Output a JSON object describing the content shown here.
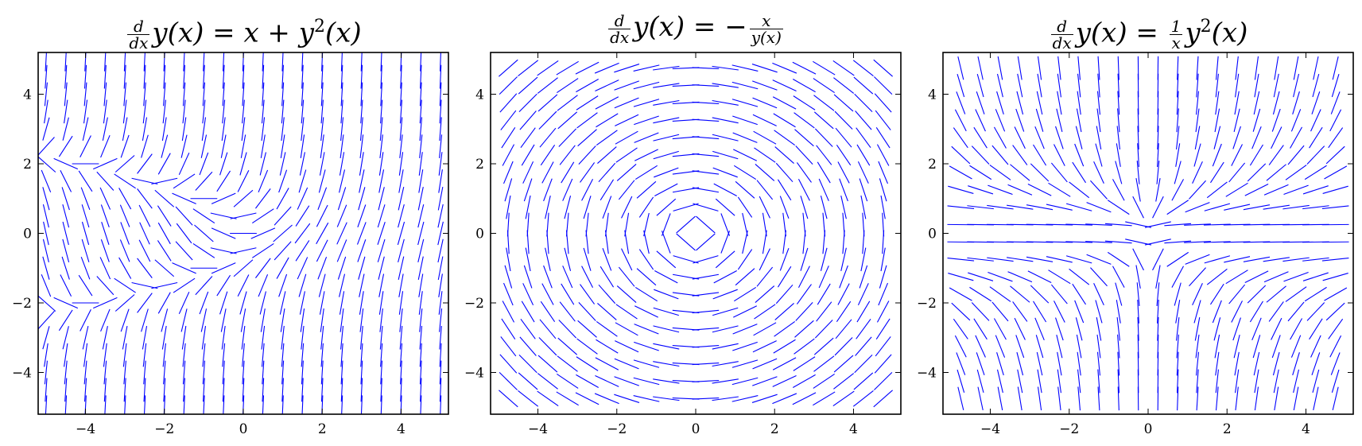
{
  "chart_data": [
    {
      "type": "slope_field",
      "equation": "y' = x + y^2",
      "title": {
        "num": "d",
        "den": "dx",
        "mid": "y(x) = x + y",
        "sup": "2",
        "tail": "(x)"
      },
      "xlim": [
        -5.2,
        5.2
      ],
      "ylim": [
        -5.2,
        5.2
      ],
      "xticks": [
        -4,
        -2,
        0,
        2,
        4
      ],
      "yticks": [
        -4,
        -2,
        0,
        2,
        4
      ],
      "xtick_labels": [
        "−4",
        "−2",
        "0",
        "2",
        "4"
      ],
      "ytick_labels": [
        "−4",
        "−2",
        "0",
        "2",
        "4"
      ],
      "grid_start": -5.0,
      "grid_step": 0.5,
      "grid_count": 21,
      "color": "#0000ff"
    },
    {
      "type": "slope_field",
      "equation": "y' = -x / y",
      "title": {
        "num": "d",
        "den": "dx",
        "mid": "y(x) = −",
        "fnum": "x",
        "fden": "y(x)"
      },
      "xlim": [
        -5.2,
        5.2
      ],
      "ylim": [
        -5.2,
        5.2
      ],
      "xticks": [
        -4,
        -2,
        0,
        2,
        4
      ],
      "yticks": [
        -4,
        -2,
        0,
        2,
        4
      ],
      "xtick_labels": [
        "−4",
        "−2",
        "0",
        "2",
        "4"
      ],
      "ytick_labels": [
        "−4",
        "−2",
        "0",
        "2",
        "4"
      ],
      "grid_start": -4.75,
      "grid_step": 0.5,
      "grid_count": 20,
      "color": "#0000ff"
    },
    {
      "type": "slope_field",
      "equation": "y' = y^2 / x",
      "title": {
        "num": "d",
        "den": "dx",
        "mid": "y(x) = ",
        "fnum": "1",
        "fden": "x",
        "tailmid": "y",
        "sup": "2",
        "tail": "(x)"
      },
      "xlim": [
        -5.2,
        5.2
      ],
      "ylim": [
        -5.2,
        5.2
      ],
      "xticks": [
        -4,
        -2,
        0,
        2,
        4
      ],
      "yticks": [
        -4,
        -2,
        0,
        2,
        4
      ],
      "xtick_labels": [
        "−4",
        "−2",
        "0",
        "2",
        "4"
      ],
      "ytick_labels": [
        "−4",
        "−2",
        "0",
        "2",
        "4"
      ],
      "grid_start": -4.75,
      "grid_step": 0.5,
      "grid_count": 20,
      "color": "#0000ff"
    }
  ]
}
